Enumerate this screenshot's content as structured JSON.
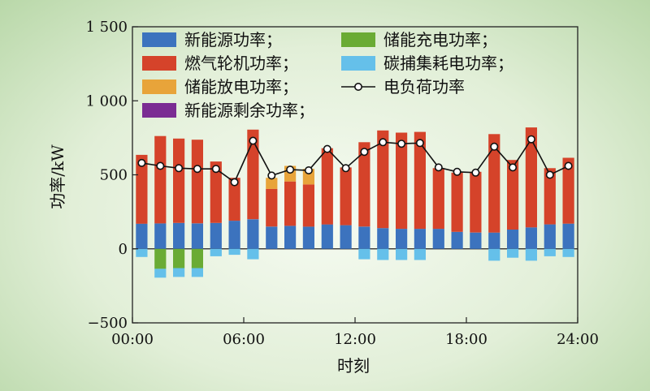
{
  "chart_data": {
    "type": "bar",
    "stacked": true,
    "xlabel": "时刻",
    "ylabel": "功率/kW",
    "ylim": [
      -500,
      1500
    ],
    "yticks": [
      -500,
      0,
      500,
      1000,
      1500
    ],
    "ytick_labels": [
      "−500",
      "0",
      "500",
      "1 000",
      "1 500"
    ],
    "xlim": [
      0,
      24
    ],
    "xticks": [
      0,
      6,
      12,
      18,
      24
    ],
    "xtick_labels": [
      "00:00",
      "06:00",
      "12:00",
      "18:00",
      "24:00"
    ],
    "x": [
      1,
      2,
      3,
      4,
      5,
      6,
      7,
      8,
      9,
      10,
      11,
      12,
      13,
      14,
      15,
      16,
      17,
      18,
      19,
      20,
      21,
      22,
      23,
      24
    ],
    "colors": {
      "renewable": "#3c73be",
      "gas_turbine": "#d5432a",
      "storage_discharge": "#e8a43a",
      "renewable_surplus": "#7b2c93",
      "storage_charge": "#6aab34",
      "ccs": "#65c0ea",
      "load": "#111111"
    },
    "legend": {
      "position": "top",
      "entries": [
        {
          "key": "renewable",
          "label": "新能源功率；"
        },
        {
          "key": "storage_charge",
          "label": "储能充电功率；"
        },
        {
          "key": "gas_turbine",
          "label": "燃气轮机功率；"
        },
        {
          "key": "ccs",
          "label": "碳捕集耗电功率；"
        },
        {
          "key": "storage_discharge",
          "label": "储能放电功率；"
        },
        {
          "key": "load",
          "label": "电负荷功率"
        },
        {
          "key": "renewable_surplus",
          "label": "新能源剩余功率；"
        }
      ]
    },
    "series": {
      "renewable": [
        170,
        172,
        175,
        172,
        175,
        190,
        200,
        150,
        155,
        150,
        165,
        160,
        150,
        140,
        135,
        135,
        135,
        115,
        110,
        110,
        130,
        145,
        165,
        170
      ],
      "gas_turbine": [
        465,
        590,
        570,
        565,
        415,
        290,
        605,
        255,
        300,
        285,
        515,
        390,
        570,
        660,
        650,
        655,
        410,
        400,
        410,
        665,
        470,
        675,
        380,
        445
      ],
      "storage_discharge": [
        0,
        0,
        0,
        0,
        0,
        0,
        0,
        75,
        105,
        105,
        0,
        0,
        0,
        0,
        0,
        0,
        0,
        0,
        0,
        0,
        0,
        0,
        0,
        0
      ],
      "storage_charge": [
        0,
        -135,
        -130,
        -130,
        0,
        0,
        0,
        0,
        0,
        0,
        0,
        0,
        0,
        0,
        0,
        0,
        0,
        0,
        0,
        0,
        0,
        0,
        0,
        0
      ],
      "ccs": [
        -55,
        -60,
        -60,
        -60,
        -50,
        -40,
        -70,
        0,
        0,
        0,
        0,
        0,
        -70,
        -75,
        -75,
        -75,
        0,
        0,
        0,
        -80,
        -60,
        -80,
        -50,
        -55
      ],
      "load": [
        580,
        560,
        545,
        540,
        540,
        450,
        730,
        495,
        535,
        530,
        675,
        545,
        655,
        720,
        710,
        715,
        550,
        520,
        515,
        690,
        550,
        740,
        500,
        560
      ]
    }
  }
}
